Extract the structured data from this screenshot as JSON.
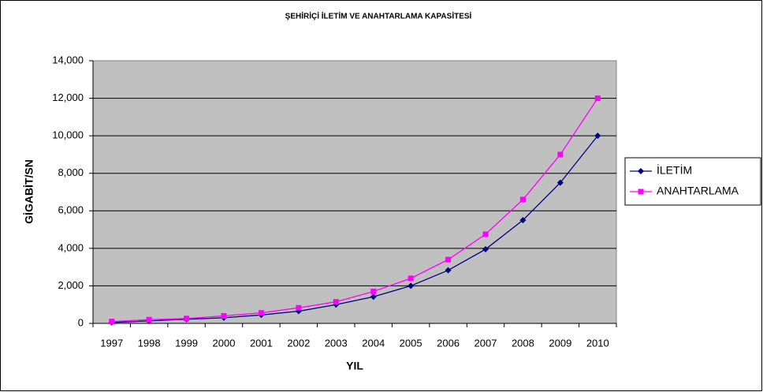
{
  "chart_data": {
    "type": "line",
    "title": "ŞEHİRİÇİ İLETİM VE ANAHTARLAMA KAPASİTESİ",
    "x_label": "YIL",
    "y_label": "GİGABİT/SN",
    "categories": [
      "1997",
      "1998",
      "1999",
      "2000",
      "2001",
      "2002",
      "2003",
      "2004",
      "2005",
      "2006",
      "2007",
      "2008",
      "2009",
      "2010"
    ],
    "series": [
      {
        "name": "İLETİM",
        "color": "#000080",
        "marker": "diamond",
        "values": [
          50,
          130,
          220,
          300,
          450,
          650,
          1000,
          1420,
          2000,
          2830,
          3950,
          5500,
          7500,
          10000
        ]
      },
      {
        "name": "ANAHTARLAMA",
        "color": "#ff00ff",
        "marker": "square",
        "values": [
          100,
          200,
          260,
          400,
          560,
          830,
          1150,
          1700,
          2400,
          3400,
          4750,
          6600,
          9000,
          12000
        ]
      }
    ],
    "ylim": [
      0,
      14000
    ],
    "yticks": [
      0,
      {
        "value": 2000,
        "label": "2,000"
      },
      {
        "value": 4000,
        "label": "4,000"
      },
      {
        "value": 6000,
        "label": "6,000"
      },
      {
        "value": 8000,
        "label": "8,000"
      },
      {
        "value": 10000,
        "label": "10,000"
      },
      {
        "value": 12000,
        "label": "12,000"
      },
      {
        "value": 14000,
        "label": "14,000"
      }
    ],
    "grid": true,
    "legend": "right",
    "plot_background": "#c0c0c0"
  }
}
